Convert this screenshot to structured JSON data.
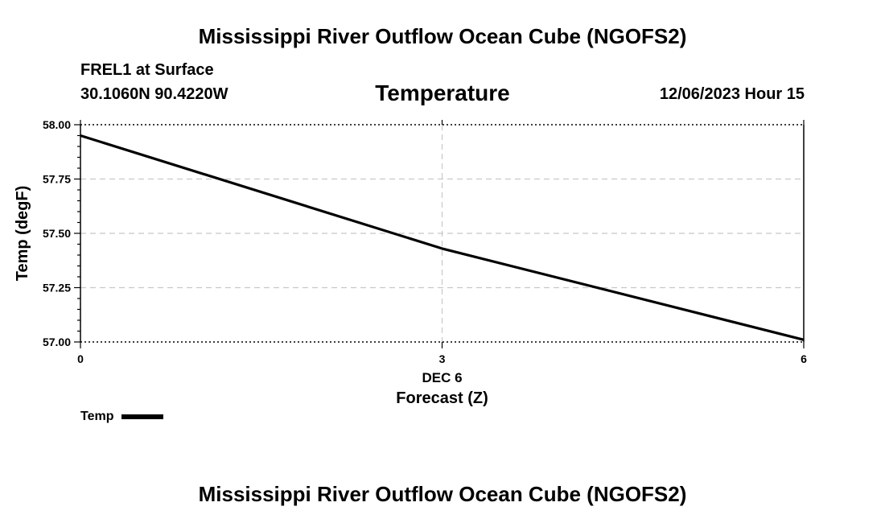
{
  "page": {
    "title": "Mississippi River Outflow Ocean Cube (NGOFS2)",
    "footer_title": "Mississippi River Outflow Ocean Cube (NGOFS2)",
    "station": "FREL1 at Surface",
    "coordinates": "30.1060N  90.4220W",
    "datetime": "12/06/2023 Hour 15"
  },
  "colors": {
    "line": "#000000",
    "grid": "#c8c8c8",
    "axis": "#000000"
  },
  "chart_data": {
    "type": "line",
    "title": "Temperature",
    "xlabel": "Forecast (Z)",
    "ylabel": "Temp (degF)",
    "xlim": [
      0,
      6
    ],
    "ylim": [
      57.0,
      58.0
    ],
    "x_ticks": [
      0,
      3,
      6
    ],
    "x_tick_labels": [
      "0",
      "3",
      "6"
    ],
    "x_date_label": "DEC 6",
    "y_ticks": [
      57.0,
      57.25,
      57.5,
      57.75,
      58.0
    ],
    "y_tick_labels": [
      "57.00",
      "57.25",
      "57.50",
      "57.75",
      "58.00"
    ],
    "grid": true,
    "legend_position": "bottom-left",
    "series": [
      {
        "name": "Temp",
        "x": [
          0,
          3,
          6
        ],
        "y": [
          57.95,
          57.43,
          57.01
        ]
      }
    ]
  }
}
